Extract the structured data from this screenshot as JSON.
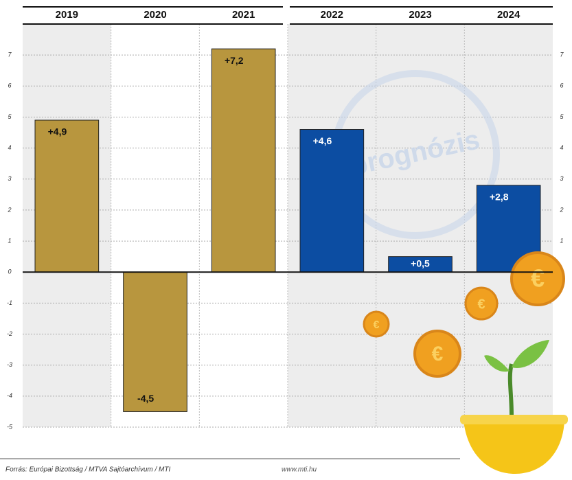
{
  "chart_data": {
    "type": "bar",
    "categories": [
      "2019",
      "2020",
      "2021",
      "2022",
      "2023",
      "2024"
    ],
    "values": [
      4.9,
      -4.5,
      7.2,
      4.6,
      0.5,
      2.8
    ],
    "value_labels": [
      "+4,9",
      "-4,5",
      "+7,2",
      "+4,6",
      "+0,5",
      "+2,8"
    ],
    "colors": [
      "#b8963e",
      "#b8963e",
      "#b8963e",
      "#0c4da2",
      "#0c4da2",
      "#0c4da2"
    ],
    "ylim": [
      -5,
      8
    ],
    "yticks": [
      -5,
      -4,
      -3,
      -2,
      -1,
      0,
      1,
      2,
      3,
      4,
      5,
      6,
      7
    ],
    "y2lim": [
      -5,
      8
    ],
    "y2ticks": [
      1,
      2,
      3,
      4,
      5,
      6,
      7
    ],
    "grid": true,
    "watermark": "prognózis",
    "source": "Forrás: Európai Bizottság / MTVA Sajtóarchívum / MTI",
    "website": "www.mti.hu"
  }
}
